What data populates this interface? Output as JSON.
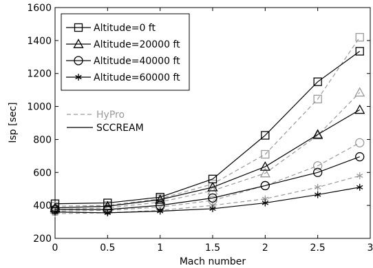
{
  "chart_data": {
    "type": "line",
    "title": "",
    "xlabel": "Mach number",
    "ylabel": "Isp [sec]",
    "xlim": [
      0,
      3
    ],
    "ylim": [
      200,
      1600
    ],
    "xticks": [
      0,
      0.5,
      1,
      1.5,
      2,
      2.5,
      3
    ],
    "yticks": [
      200,
      400,
      600,
      800,
      1000,
      1200,
      1400,
      1600
    ],
    "xtick_labels": [
      "0",
      "0.5",
      "1",
      "1.5",
      "2",
      "2.5",
      "3"
    ],
    "ytick_labels": [
      "200",
      "400",
      "600",
      "800",
      "1000",
      "1200",
      "1400",
      "1600"
    ],
    "grid": false,
    "x": [
      0,
      0.5,
      1,
      1.5,
      2,
      2.5,
      2.9
    ],
    "series": [
      {
        "name": "Altitude=0 ft",
        "model": "SCCREAM",
        "marker": "square",
        "values": [
          410,
          415,
          450,
          560,
          825,
          1150,
          1335
        ]
      },
      {
        "name": "Altitude=20000 ft",
        "model": "SCCREAM",
        "marker": "triangle",
        "values": [
          385,
          395,
          435,
          510,
          635,
          830,
          980
        ]
      },
      {
        "name": "Altitude=40000 ft",
        "model": "SCCREAM",
        "marker": "circle",
        "values": [
          375,
          375,
          400,
          445,
          520,
          600,
          695
        ]
      },
      {
        "name": "Altitude=60000 ft",
        "model": "SCCREAM",
        "marker": "star",
        "values": [
          360,
          355,
          365,
          380,
          415,
          465,
          510
        ]
      },
      {
        "name": "Altitude=0 ft",
        "model": "HyPro",
        "marker": "square",
        "values": [
          395,
          400,
          440,
          530,
          710,
          1045,
          1420
        ]
      },
      {
        "name": "Altitude=20000 ft",
        "model": "HyPro",
        "marker": "triangle",
        "values": [
          375,
          385,
          420,
          490,
          595,
          825,
          1085
        ]
      },
      {
        "name": "Altitude=40000 ft",
        "model": "HyPro",
        "marker": "circle",
        "values": [
          365,
          370,
          390,
          430,
          520,
          640,
          780
        ]
      },
      {
        "name": "Altitude=60000 ft",
        "model": "HyPro",
        "marker": "star",
        "values": [
          350,
          355,
          370,
          400,
          440,
          510,
          580
        ]
      }
    ],
    "legend": {
      "position": "top-left",
      "altitude_entries": [
        {
          "label": "Altitude=0 ft",
          "marker": "square"
        },
        {
          "label": "Altitude=20000 ft",
          "marker": "triangle"
        },
        {
          "label": "Altitude=40000 ft",
          "marker": "circle"
        },
        {
          "label": "Altitude=60000 ft",
          "marker": "star"
        }
      ],
      "model_entries": [
        {
          "label": "HyPro",
          "style": "dashed",
          "color": "#999999"
        },
        {
          "label": "SCCREAM",
          "style": "solid",
          "color": "#000000"
        }
      ]
    },
    "colors": {
      "HyPro": "#999999",
      "SCCREAM": "#000000"
    }
  }
}
